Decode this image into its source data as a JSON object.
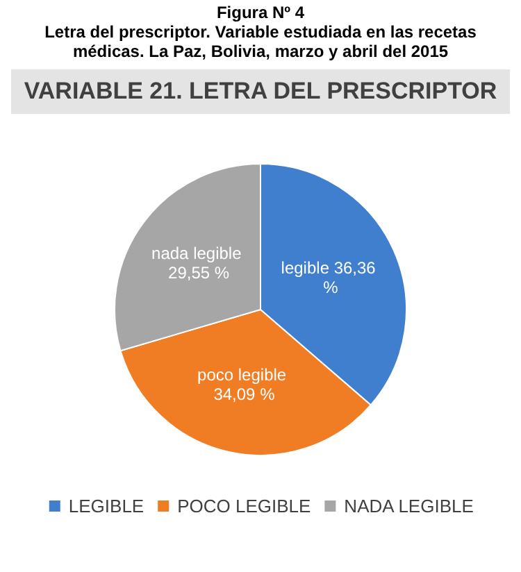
{
  "chart_data": {
    "type": "pie",
    "title": "VARIABLE 21. LETRA DEL PRESCRIPTOR",
    "annotations": [
      "Figura Nº 4",
      "Letra del prescriptor. Variable estudiada en las recetas médicas. La Paz, Bolivia, marzo y abril del 2015"
    ],
    "categories": [
      "LEGIBLE",
      "POCO LEGIBLE",
      "NADA LEGIBLE"
    ],
    "values": [
      36.36,
      34.09,
      29.55
    ],
    "colors": [
      "#3f7fce",
      "#f07d23",
      "#a6a6a6"
    ],
    "value_labels": [
      "legible 36,36 %",
      "poco legible 34,09 %",
      "nada legible 29,55 %"
    ],
    "legend": "bottom"
  }
}
